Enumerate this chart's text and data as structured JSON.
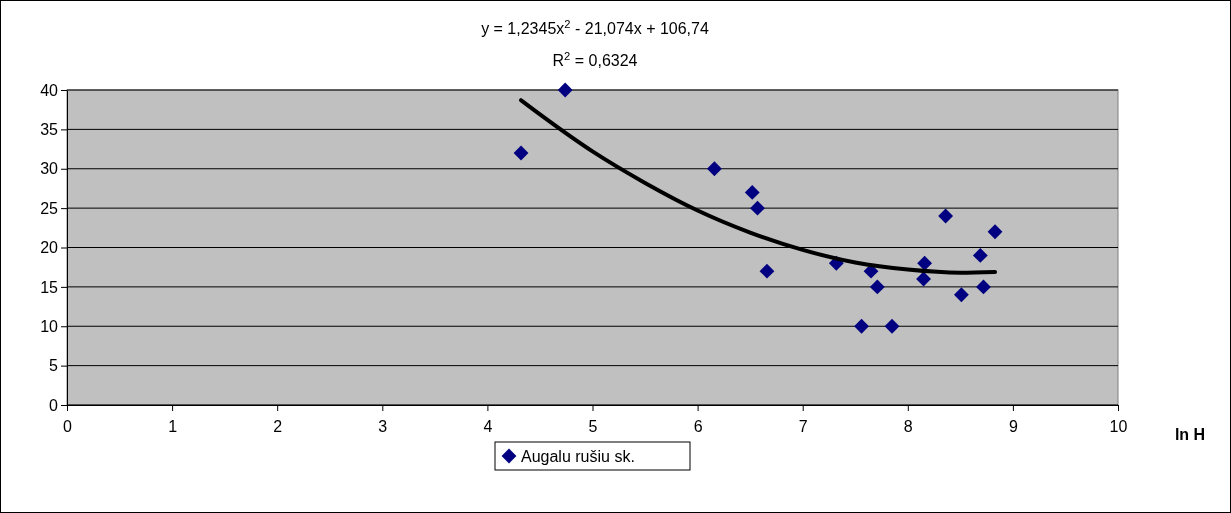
{
  "chart_data": {
    "type": "scatter",
    "title": "y = 1,2345x$^{2}$ - 21,074x + 106,74",
    "subtitle": "R$^{2}$ = 0,6324",
    "xlabel": "ln H",
    "xlim": [
      0,
      10
    ],
    "xticks": [
      0,
      1,
      2,
      3,
      4,
      5,
      6,
      7,
      8,
      9,
      10
    ],
    "ylim": [
      0,
      40
    ],
    "yticks": [
      0,
      5,
      10,
      15,
      20,
      25,
      30,
      35,
      40
    ],
    "grid": "y",
    "legend": "bottom",
    "marker": "diamond",
    "series": [
      {
        "name": "Augalu rušiu sk.",
        "color": "#000080",
        "x": [
          4.32,
          4.74,
          6.16,
          6.52,
          6.57,
          6.66,
          7.32,
          7.56,
          7.65,
          7.71,
          7.85,
          8.15,
          8.16,
          8.36,
          8.51,
          8.69,
          8.72,
          8.83
        ],
        "values": [
          32,
          40,
          30,
          27,
          25,
          17,
          18,
          10,
          17,
          15,
          10,
          16,
          18,
          24,
          14,
          19,
          15,
          22
        ]
      },
      {
        "color": "#000000",
        "type": "line",
        "marker": "none",
        "line_style": "solid",
        "x": [
          4.32,
          4.5,
          5,
          5.5,
          6,
          6.5,
          7,
          7.5,
          8,
          8.5,
          8.83
        ],
        "values": [
          38.7,
          36.9,
          32.2,
          28.2,
          24.7,
          21.9,
          19.7,
          18.1,
          17.2,
          16.8,
          16.9
        ]
      }
    ]
  }
}
